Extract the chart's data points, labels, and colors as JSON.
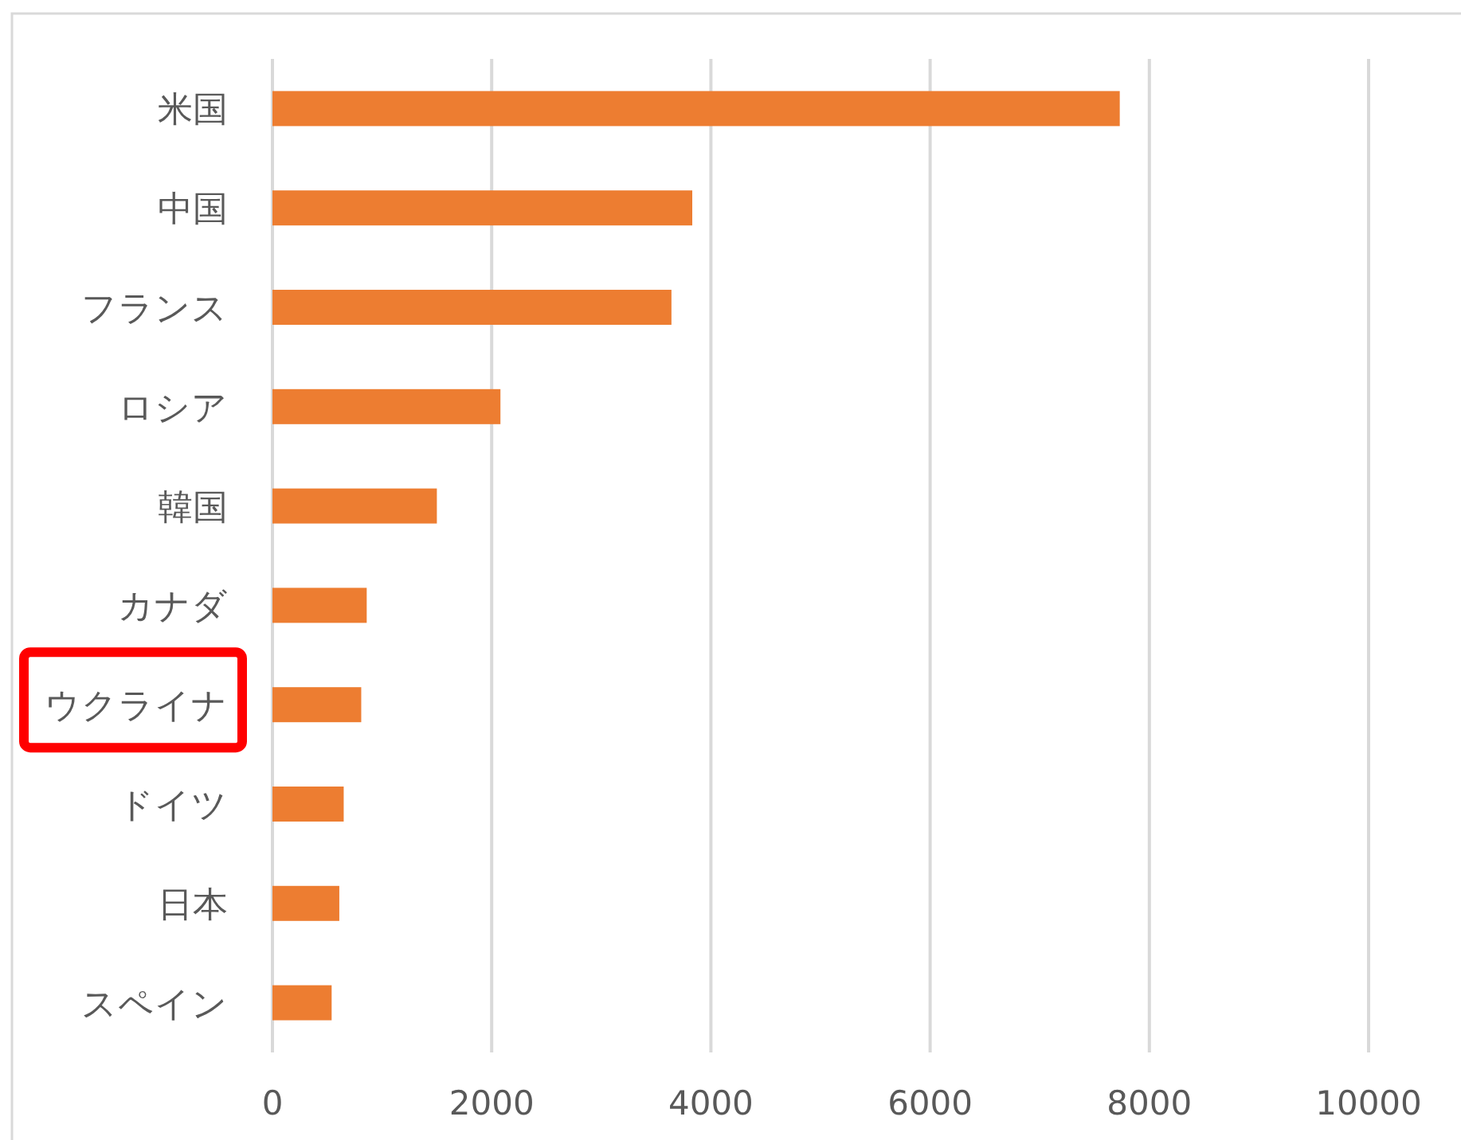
{
  "chart_data": {
    "type": "bar",
    "orientation": "horizontal",
    "categories": [
      "米国",
      "中国",
      "フランス",
      "ロシア",
      "韓国",
      "カナダ",
      "ウクライナ",
      "ドイツ",
      "日本",
      "スペイン"
    ],
    "values": [
      7730,
      3830,
      3640,
      2080,
      1500,
      860,
      810,
      650,
      610,
      540
    ],
    "color": "#ed7d31",
    "xlim": [
      0,
      10000
    ],
    "xticks": [
      0,
      2000,
      4000,
      6000,
      8000,
      10000
    ],
    "grid": "x"
  }
}
